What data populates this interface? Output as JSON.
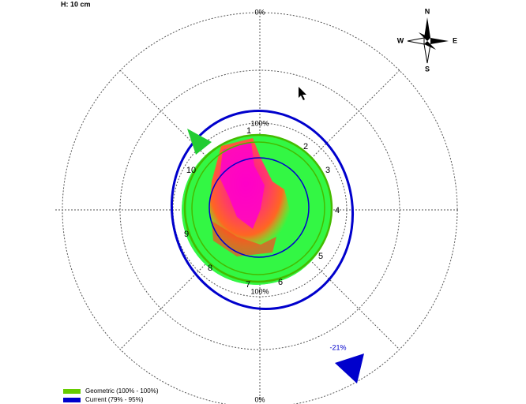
{
  "header": {
    "height_label": "H: 10 cm"
  },
  "scale": {
    "top": "0%",
    "bottom": "0%"
  },
  "ring": {
    "top": "100%",
    "bottom": "100%"
  },
  "sectors": [
    "1",
    "2",
    "3",
    "4",
    "5",
    "6",
    "7",
    "8",
    "9",
    "10"
  ],
  "compass": {
    "n": "N",
    "s": "S",
    "e": "E",
    "w": "W"
  },
  "indicator": "-21%",
  "legend": [
    {
      "label": "Geometric (100% - 100%)",
      "color": "#66cc00"
    },
    {
      "label": "Current (79% - 95%)",
      "color": "#0000cc"
    }
  ]
}
